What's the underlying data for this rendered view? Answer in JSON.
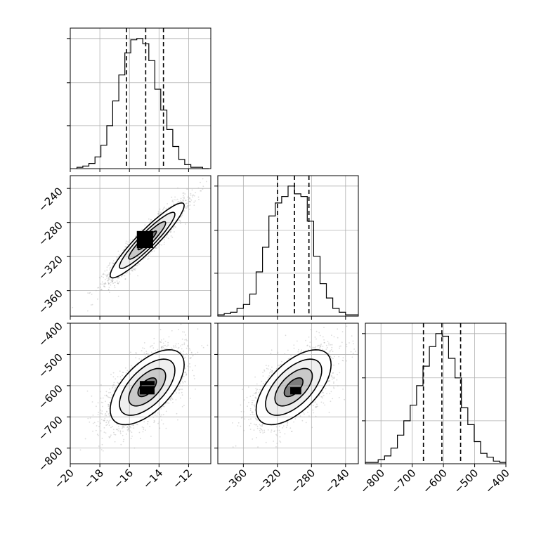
{
  "chart_data": {
    "type": "corner",
    "title": "",
    "grid": true,
    "parameters": [
      {
        "label": "",
        "range": [
          -20,
          -10.5
        ],
        "ticks": [
          -20,
          -18,
          -16,
          -14,
          -12
        ],
        "tick_labels": [
          "−20",
          "−18",
          "−16",
          "−14",
          "−12"
        ],
        "quantiles": [
          -16.2,
          -14.9,
          -13.7
        ],
        "mean": -14.8,
        "sd": 1.25
      },
      {
        "label": "",
        "range": [
          -390,
          -225
        ],
        "ticks": [
          -360,
          -320,
          -280,
          -240
        ],
        "tick_labels": [
          "−360",
          "−320",
          "−280",
          "−240"
        ],
        "quantiles": [
          -320,
          -300,
          -283
        ],
        "mean": -301,
        "sd": 22
      },
      {
        "label": "",
        "range": [
          -850,
          -400
        ],
        "ticks": [
          -800,
          -700,
          -600,
          -500,
          -400
        ],
        "tick_labels": [
          "−800",
          "−700",
          "−600",
          "−500",
          "−400"
        ],
        "quantiles": [
          -664,
          -605,
          -545
        ],
        "mean": -605,
        "sd": 60
      }
    ],
    "correlations": {
      "p1_p0": 0.93,
      "p2_p0": 0.6,
      "p2_p1": 0.6
    },
    "histograms": [
      {
        "param": 0,
        "edges": [
          -19.55,
          -19.15,
          -18.74,
          -18.33,
          -17.93,
          -17.53,
          -17.13,
          -16.72,
          -16.31,
          -15.91,
          -15.5,
          -15.1,
          -14.69,
          -14.28,
          -13.88,
          -13.47,
          -13.07,
          -12.66,
          -12.26,
          -11.85,
          -11.45,
          -11.05,
          -10.64
        ],
        "counts": [
          1,
          2,
          4,
          9,
          18,
          33,
          52,
          72,
          89,
          99,
          100,
          96,
          83,
          61,
          45,
          30,
          17,
          7,
          3,
          1,
          1,
          0
        ]
      },
      {
        "param": 1,
        "edges": [
          -390,
          -382.5,
          -375,
          -367.5,
          -360,
          -352.5,
          -345,
          -337.5,
          -330,
          -322.5,
          -315,
          -307.5,
          -300,
          -292.5,
          -285,
          -277.5,
          -270,
          -262.5,
          -255,
          -247.5,
          -240,
          -232.5,
          -225
        ],
        "counts": [
          1,
          2,
          3,
          6,
          9,
          17,
          34,
          53,
          77,
          87,
          92,
          100,
          94,
          92,
          73,
          46,
          25,
          14,
          6,
          3,
          1,
          1
        ]
      },
      {
        "param": 2,
        "edges": [
          -850,
          -829.5,
          -809,
          -788.5,
          -768,
          -747.5,
          -727,
          -706.5,
          -686,
          -665.5,
          -645,
          -624.5,
          -604,
          -583.5,
          -563,
          -542.5,
          -522,
          -501.5,
          -481,
          -460.5,
          -440,
          -419.5,
          -399
        ],
        "counts": [
          1,
          1,
          3,
          6,
          12,
          22,
          33,
          45,
          60,
          75,
          90,
          100,
          98,
          81,
          66,
          43,
          30,
          17,
          8,
          5,
          2,
          1
        ]
      }
    ],
    "density_cells": [
      {
        "pair": [
          0,
          1
        ],
        "x_edges": [
          -15.5,
          -14.4
        ],
        "y_edges": [
          -310,
          -290
        ],
        "shade": "#000000"
      },
      {
        "pair": [
          0,
          2
        ],
        "x_edges": [
          -15.3,
          -14.3
        ],
        "y_edges": [
          -628,
          -585
        ],
        "shade": "#000000"
      },
      {
        "pair": [
          1,
          2
        ],
        "x_edges": [
          -305,
          -292
        ],
        "y_edges": [
          -628,
          -605
        ],
        "shade": "#000000"
      }
    ]
  }
}
